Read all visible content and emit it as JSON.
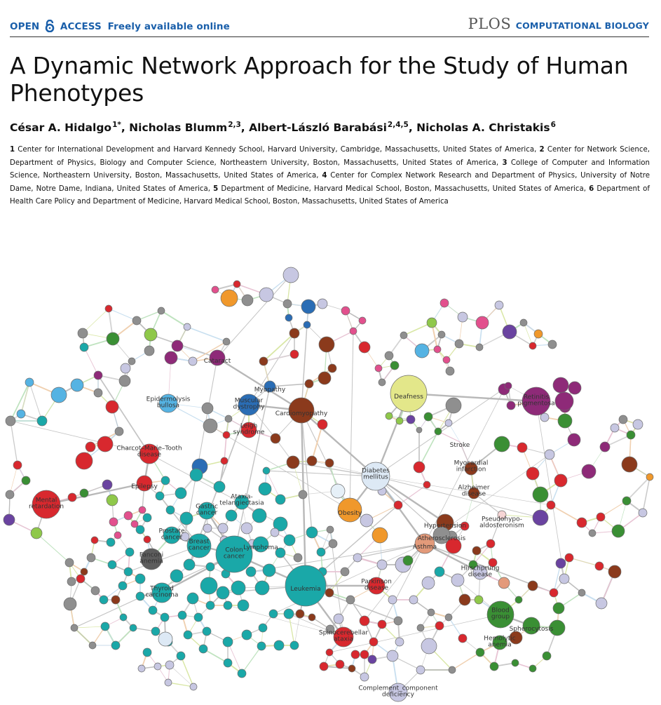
{
  "header": {
    "open_access_label": "OPEN",
    "access_label": "ACCESS",
    "freely_label": "Freely available online",
    "publisher_logo": "PLOS",
    "journal_name": "COMPUTATIONAL BIOLOGY",
    "lock_icon": "open-lock-icon",
    "colors": {
      "accent": "#1a5faa",
      "logo": "#555555"
    }
  },
  "article": {
    "title": "A Dynamic Network Approach for the Study of Human Phenotypes",
    "authors": [
      {
        "name": "César A. Hidalgo",
        "sup": "1*",
        "sep": ", "
      },
      {
        "name": "Nicholas Blumm",
        "sup": "2,3",
        "sep": ", "
      },
      {
        "name": "Albert-László Barabási",
        "sup": "2,4,5",
        "sep": ", "
      },
      {
        "name": "Nicholas A. Christakis",
        "sup": "6",
        "sep": ""
      }
    ],
    "affiliations": [
      {
        "num": "1",
        "text": "Center for International Development and Harvard Kennedy School, Harvard University, Cambridge, Massachusetts, United States of America,"
      },
      {
        "num": "2",
        "text": "Center for Network Science, Department of Physics, Biology and Computer Science, Northeastern University, Boston, Massachusetts, United States of America,"
      },
      {
        "num": "3",
        "text": "College of Computer and Information Science, Northeastern University, Boston, Massachusetts, United States of America,"
      },
      {
        "num": "4",
        "text": "Center for Complex Network Research and Department of Physics, University of Notre Dame, Notre Dame, Indiana, United States of America,"
      },
      {
        "num": "5",
        "text": "Department of Medicine, Harvard Medical School, Boston, Massachusetts, United States of America,"
      },
      {
        "num": "6",
        "text": "Department of Health Care Policy and Department of Medicine, Harvard Medical School, Boston, Massachusetts, United States of America"
      }
    ]
  },
  "figure": {
    "node_labels": [
      {
        "lines": [
          "Cataract"
        ]
      },
      {
        "lines": [
          "Myopathy"
        ]
      },
      {
        "lines": [
          "Muscular",
          "dystrophy"
        ]
      },
      {
        "lines": [
          "Cardiomyopathy"
        ]
      },
      {
        "lines": [
          "Leigh",
          "syndrome"
        ]
      },
      {
        "lines": [
          "Epidermolysis",
          "bullosa"
        ]
      },
      {
        "lines": [
          "Deafness"
        ]
      },
      {
        "lines": [
          "Retinitis",
          "pigmentosa"
        ]
      },
      {
        "lines": [
          "Charcot–Marie–Tooth",
          "disease"
        ]
      },
      {
        "lines": [
          "Stroke"
        ]
      },
      {
        "lines": [
          "Epilepsy"
        ]
      },
      {
        "lines": [
          "Mental",
          "retardation"
        ]
      },
      {
        "lines": [
          "Diabetes",
          "mellitus"
        ]
      },
      {
        "lines": [
          "Myocardial",
          "infarction"
        ]
      },
      {
        "lines": [
          "Alzheimer",
          "disease"
        ]
      },
      {
        "lines": [
          "Ataxia-",
          "telangiectasia"
        ]
      },
      {
        "lines": [
          "Gastric",
          "cancer"
        ]
      },
      {
        "lines": [
          "Obesity"
        ]
      },
      {
        "lines": [
          "Pseudohypo-",
          "aldosteronism"
        ]
      },
      {
        "lines": [
          "Hypertension"
        ]
      },
      {
        "lines": [
          "Atherosclerosis"
        ]
      },
      {
        "lines": [
          "Prostate",
          "cancer"
        ]
      },
      {
        "lines": [
          "Breast",
          "cancer"
        ]
      },
      {
        "lines": [
          "Lymphoma"
        ]
      },
      {
        "lines": [
          "Asthma"
        ]
      },
      {
        "lines": [
          "Fanconi",
          "anemia"
        ]
      },
      {
        "lines": [
          "Colon",
          "cancer"
        ]
      },
      {
        "lines": [
          "Hirschprung",
          "disease"
        ]
      },
      {
        "lines": [
          "Leukemia"
        ]
      },
      {
        "lines": [
          "Parkinson",
          "disease"
        ]
      },
      {
        "lines": [
          "Thyroid",
          "carcinoma"
        ]
      },
      {
        "lines": [
          "Blood",
          "group"
        ]
      },
      {
        "lines": [
          "Spherocytosis"
        ]
      },
      {
        "lines": [
          "Spinocerebellar",
          "ataxia"
        ]
      },
      {
        "lines": [
          "Hemolytic",
          "anemia"
        ]
      },
      {
        "lines": [
          "Complement_component",
          "deficiency"
        ]
      }
    ]
  }
}
